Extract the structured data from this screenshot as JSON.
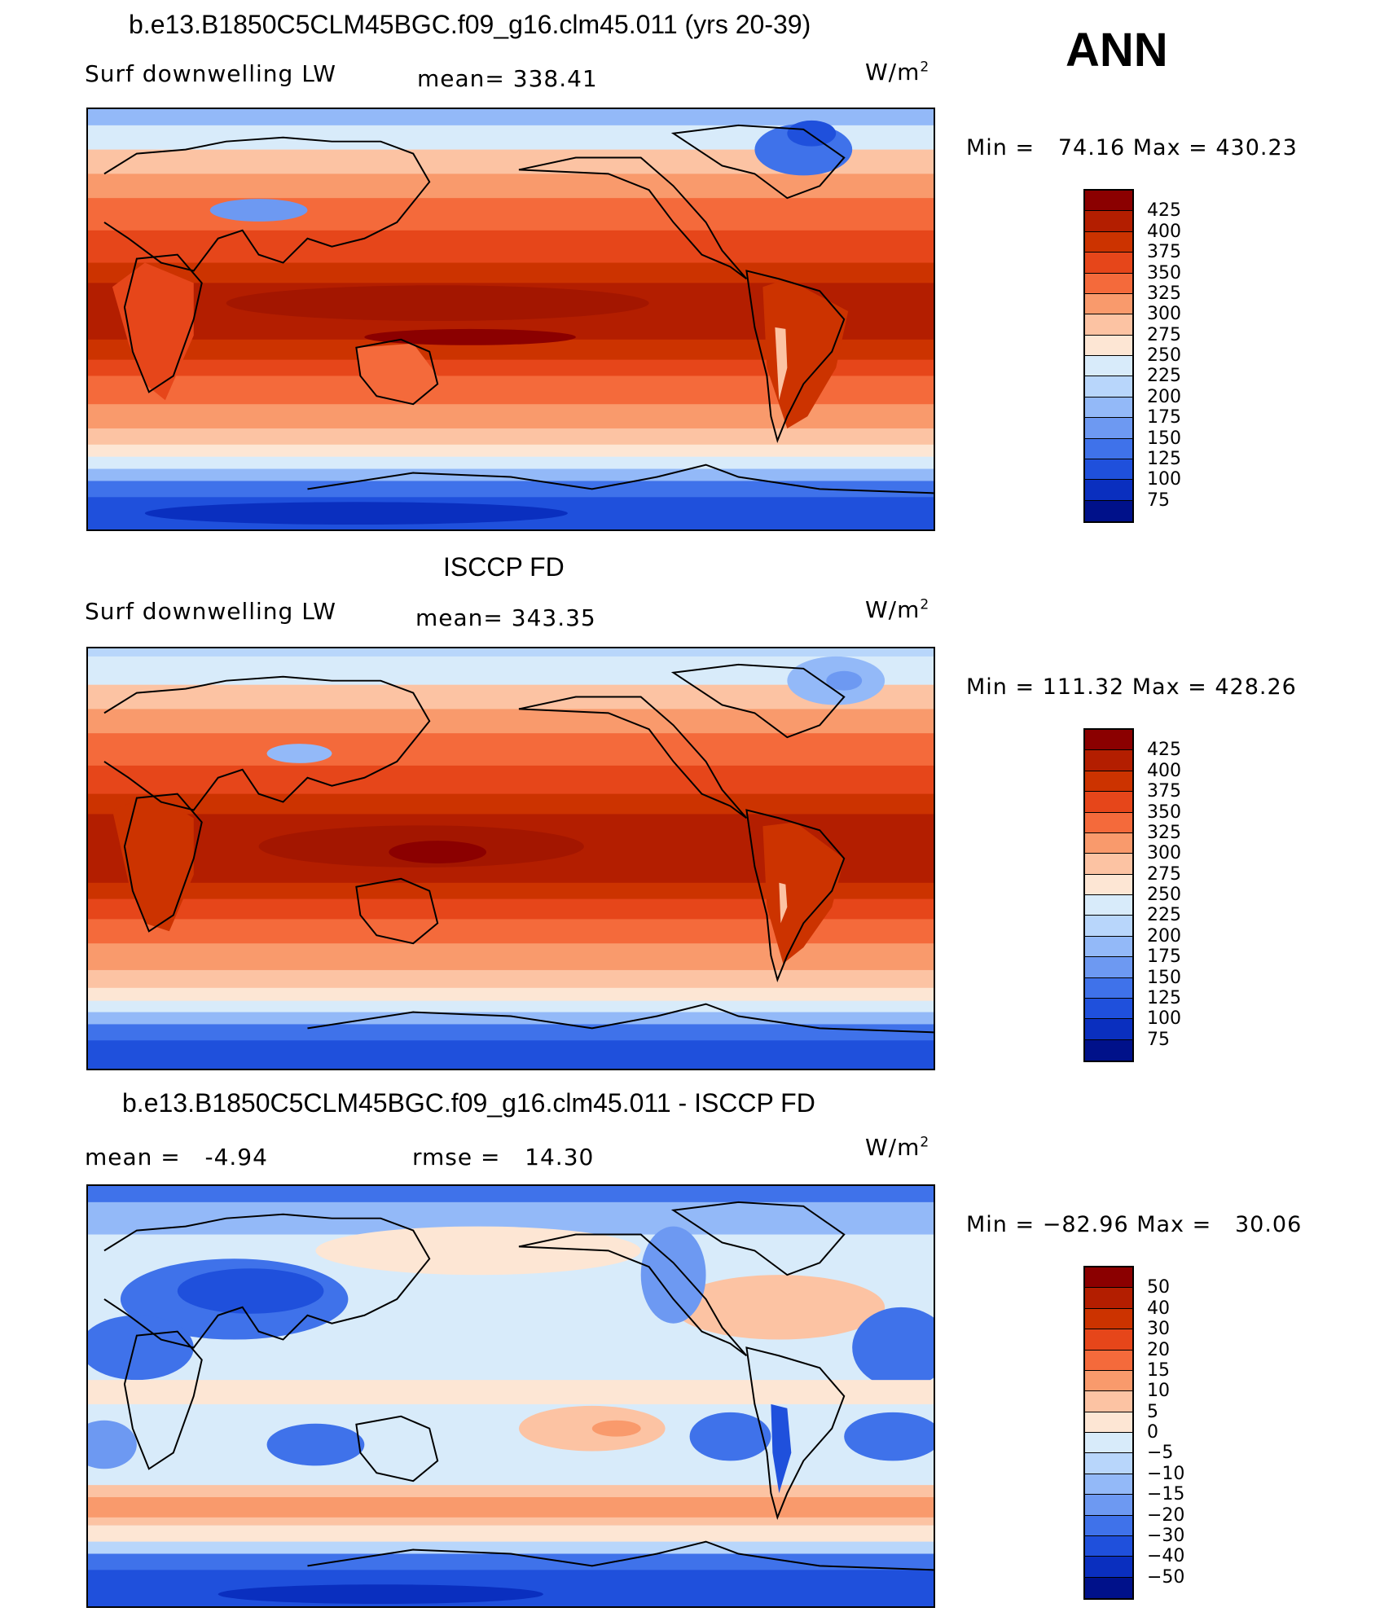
{
  "header": {
    "season": "ANN"
  },
  "panels": [
    {
      "id": "model",
      "title": "b.e13.B1850C5CLM45BGC.f09_g16.clm45.011 (yrs 20-39)",
      "left_label": "Surf downwelling LW",
      "center_label": "mean= 338.41",
      "units": "W/m",
      "units_sup": "2",
      "minmax": "Min =   74.16 Max = 430.23",
      "colorbar": {
        "labels": [
          "425",
          "400",
          "375",
          "350",
          "325",
          "300",
          "275",
          "250",
          "225",
          "200",
          "175",
          "150",
          "125",
          "100",
          "75"
        ],
        "colors": [
          "#8b0000",
          "#b31e00",
          "#cc3300",
          "#e6461a",
          "#f46a3b",
          "#f99a6c",
          "#fcc3a3",
          "#fde6d4",
          "#d8ebfa",
          "#b8d6fb",
          "#93b9f8",
          "#6d99f2",
          "#3f72ea",
          "#1f50dc",
          "#0a2fbf",
          "#00118a"
        ]
      }
    },
    {
      "id": "obs",
      "title": "ISCCP FD",
      "left_label": "Surf downwelling LW",
      "center_label": "mean= 343.35",
      "units": "W/m",
      "units_sup": "2",
      "minmax": "Min = 111.32 Max = 428.26",
      "colorbar": {
        "labels": [
          "425",
          "400",
          "375",
          "350",
          "325",
          "300",
          "275",
          "250",
          "225",
          "200",
          "175",
          "150",
          "125",
          "100",
          "75"
        ],
        "colors": [
          "#8b0000",
          "#b31e00",
          "#cc3300",
          "#e6461a",
          "#f46a3b",
          "#f99a6c",
          "#fcc3a3",
          "#fde6d4",
          "#d8ebfa",
          "#b8d6fb",
          "#93b9f8",
          "#6d99f2",
          "#3f72ea",
          "#1f50dc",
          "#0a2fbf",
          "#00118a"
        ]
      }
    },
    {
      "id": "diff",
      "title": "b.e13.B1850C5CLM45BGC.f09_g16.clm45.011 - ISCCP FD",
      "left_label": "mean =   -4.94",
      "center_label": "rmse =   14.30",
      "units": "W/m",
      "units_sup": "2",
      "minmax": "Min = −82.96 Max =   30.06",
      "colorbar": {
        "labels": [
          "50",
          "40",
          "30",
          "20",
          "15",
          "10",
          "5",
          "0",
          "−5",
          "−10",
          "−15",
          "−20",
          "−30",
          "−40",
          "−50"
        ],
        "colors": [
          "#8b0000",
          "#b31e00",
          "#cc3300",
          "#e6461a",
          "#f46a3b",
          "#f99a6c",
          "#fcc3a3",
          "#fde6d4",
          "#d8ebfa",
          "#b8d6fb",
          "#93b9f8",
          "#6d99f2",
          "#3f72ea",
          "#1f50dc",
          "#0a2fbf",
          "#00118a"
        ]
      }
    }
  ],
  "map_colors": {
    "deep_red": "#a31600",
    "red": "#cc3300",
    "orange_red": "#e6461a",
    "orange": "#f46a3b",
    "salmon": "#f99a6c",
    "peach": "#fcc3a3",
    "cream": "#fde6d4",
    "pale_blue": "#d8ebfa",
    "light_blue": "#b8d6fb",
    "mid_blue": "#6d99f2",
    "blue": "#3f72ea",
    "deep_blue": "#1f50dc",
    "navy": "#0a2fbf"
  }
}
